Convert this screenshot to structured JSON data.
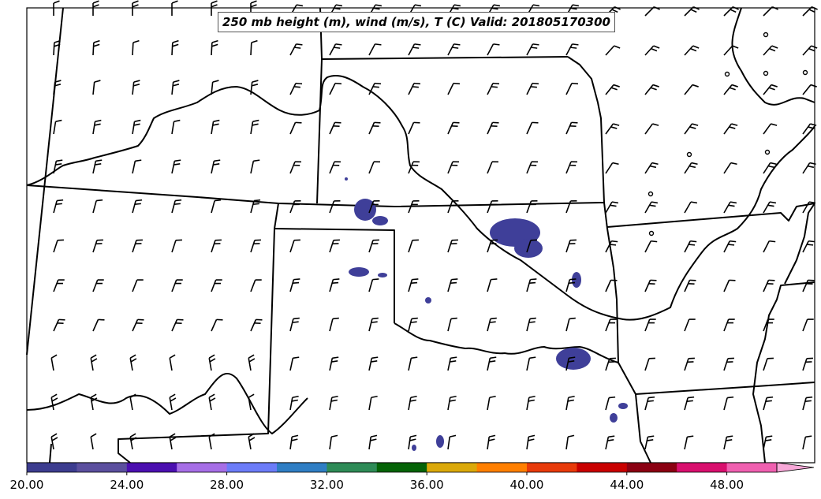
{
  "map": {
    "title": "250 mb height (m), wind (m/s), T (C) Valid: 201805170300",
    "region": "Central US (KS, OK, TX, MO, AR)",
    "shading_color": "#3f3f99",
    "barb_color": "#000000",
    "border_color": "#000000"
  },
  "colorbar": {
    "tick_labels": [
      "20.00",
      "24.00",
      "28.00",
      "32.00",
      "36.00",
      "40.00",
      "44.00",
      "48.00"
    ],
    "colors": [
      "#3c3c8f",
      "#5b4f9e",
      "#4b0fb0",
      "#a66ee6",
      "#6c7cf8",
      "#2f7ec4",
      "#2e8b57",
      "#056307",
      "#dba90a",
      "#ff7f00",
      "#e83a0a",
      "#c90000",
      "#8b0012",
      "#d90f6e",
      "#f060b0"
    ],
    "extend_color": "#f8a8d8"
  }
}
